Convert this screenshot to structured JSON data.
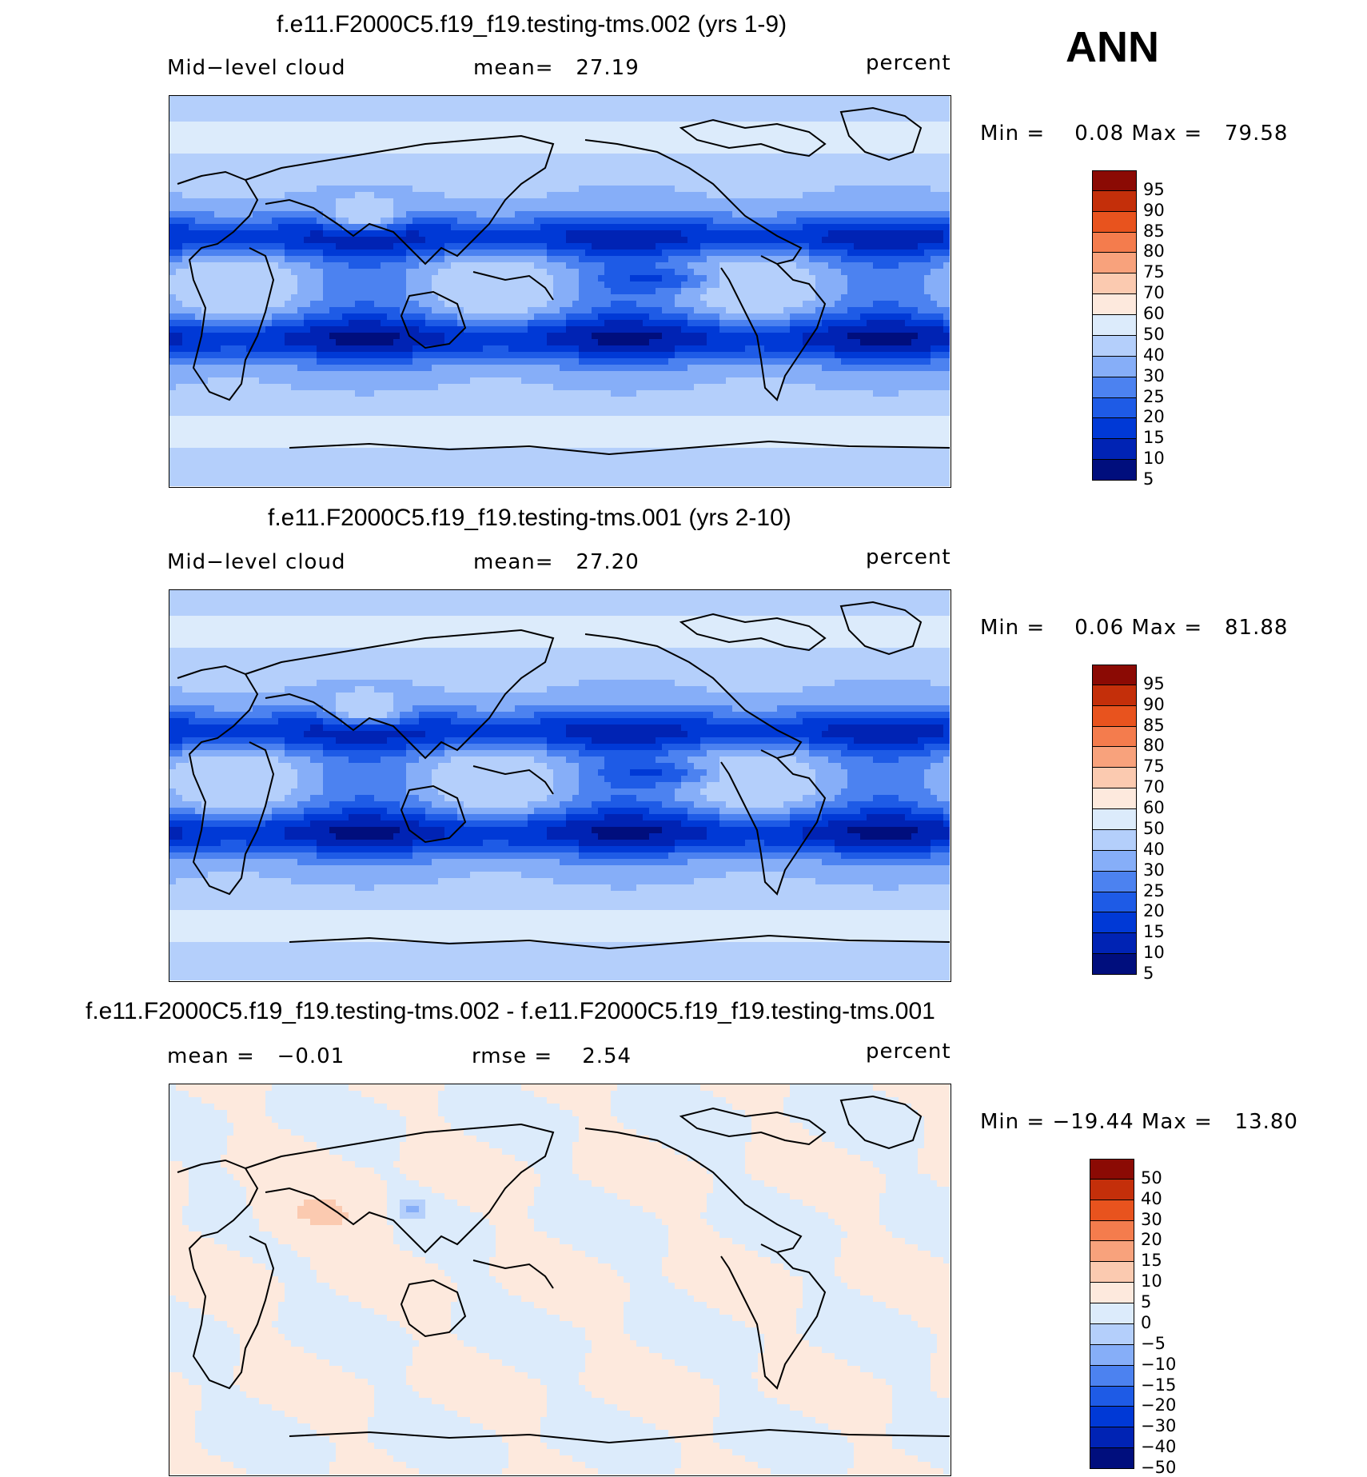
{
  "season": "ANN",
  "colors": {
    "abs": [
      "#000e7d",
      "#0023b4",
      "#0039d6",
      "#1e5be6",
      "#4c82f0",
      "#86aef8",
      "#b4cffb",
      "#dcebfb",
      "#fde9dd",
      "#fbcab0",
      "#f8a27c",
      "#f47c4d",
      "#e8531e",
      "#c42f0a",
      "#8b0a04"
    ],
    "diff": [
      "#000e7d",
      "#0023b4",
      "#0039d6",
      "#1e5be6",
      "#4c82f0",
      "#86aef8",
      "#b4cffb",
      "#dcebfb",
      "#fde9dd",
      "#fbcab0",
      "#f8a27c",
      "#f47c4d",
      "#e8531e",
      "#c42f0a",
      "#8b0a04"
    ]
  },
  "chart_data": [
    {
      "type": "heatmap",
      "title": "f.e11.F2000C5.f19_f19.testing-tms.002 (yrs 1-9)",
      "variable": "Mid−level cloud",
      "stat_text": "mean=   27.19",
      "units": "percent",
      "minmax_text": "Min =    0.08 Max =   79.58",
      "min": 0.08,
      "max": 79.58,
      "mean": 27.19,
      "colorbar_levels": [
        "95",
        "90",
        "85",
        "80",
        "75",
        "70",
        "60",
        "50",
        "40",
        "30",
        "25",
        "20",
        "15",
        "10",
        "5"
      ]
    },
    {
      "type": "heatmap",
      "title": "f.e11.F2000C5.f19_f19.testing-tms.001 (yrs 2-10)",
      "variable": "Mid−level cloud",
      "stat_text": "mean=   27.20",
      "units": "percent",
      "minmax_text": "Min =    0.06 Max =   81.88",
      "min": 0.06,
      "max": 81.88,
      "mean": 27.2,
      "colorbar_levels": [
        "95",
        "90",
        "85",
        "80",
        "75",
        "70",
        "60",
        "50",
        "40",
        "30",
        "25",
        "20",
        "15",
        "10",
        "5"
      ]
    },
    {
      "type": "heatmap",
      "title": "f.e11.F2000C5.f19_f19.testing-tms.002 - f.e11.F2000C5.f19_f19.testing-tms.001",
      "variable": "mean =   −0.01",
      "stat_text": "rmse =    2.54",
      "units": "percent",
      "minmax_text": "Min = −19.44 Max =   13.80",
      "min": -19.44,
      "max": 13.8,
      "mean": -0.01,
      "rmse": 2.54,
      "colorbar_levels": [
        "50",
        "40",
        "30",
        "20",
        "15",
        "10",
        "5",
        "0",
        "−5",
        "−10",
        "−15",
        "−20",
        "−30",
        "−40",
        "−50"
      ]
    }
  ]
}
